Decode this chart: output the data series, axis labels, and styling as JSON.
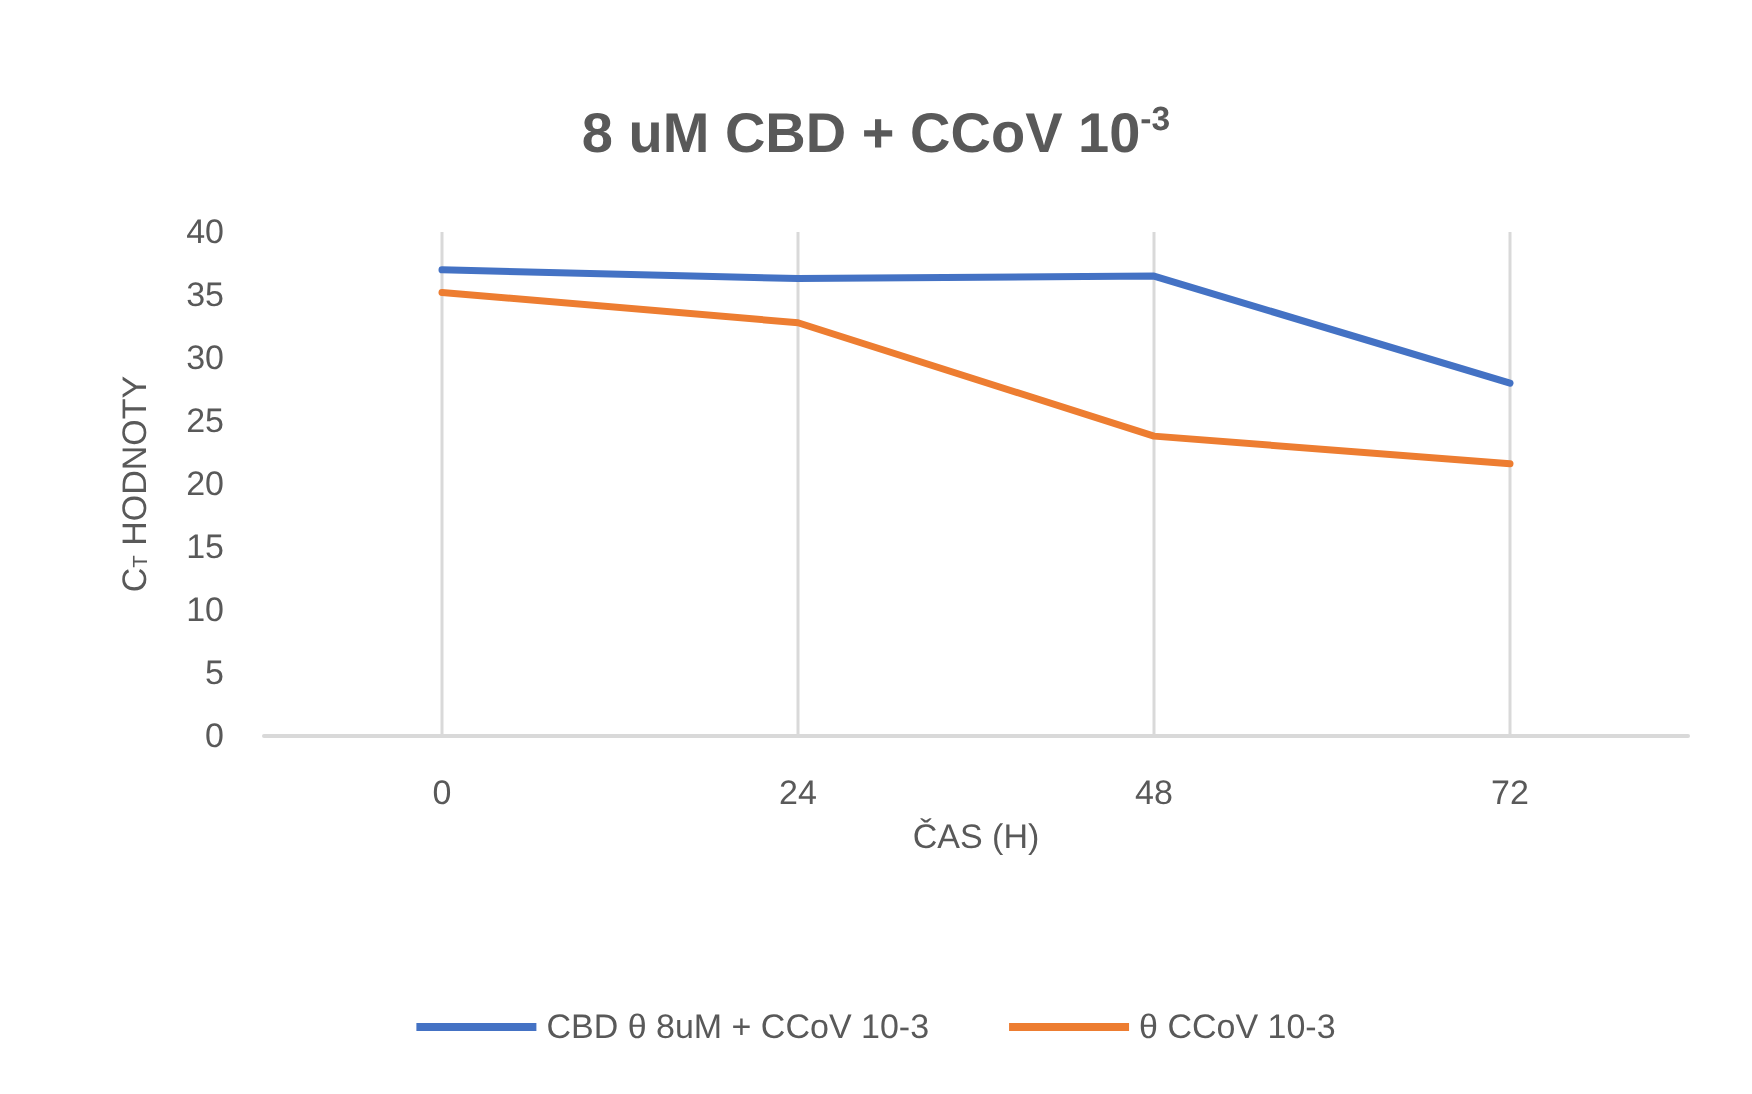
{
  "chart_data": {
    "type": "line",
    "title": "8 uM CBD + CCoV 10$^{-3}$",
    "xlabel": "ČAS (H)",
    "ylabel": "C$_{T}$ HODNOTY",
    "x": [
      0,
      24,
      48,
      72
    ],
    "xlim": [
      -12,
      84
    ],
    "xticks": [
      0,
      24,
      48,
      72
    ],
    "ylim": [
      0,
      40
    ],
    "yticks": [
      0,
      5,
      10,
      15,
      20,
      25,
      30,
      35,
      40
    ],
    "grid": "x",
    "legend": "bottom",
    "marker": "none",
    "line_style": "solid",
    "series": [
      {
        "name": "CBD θ 8uM + CCoV 10-3",
        "color": "#4472c4",
        "values": [
          37.0,
          36.3,
          36.5,
          28.0
        ]
      },
      {
        "name": "θ CCoV 10-3",
        "color": "#ed7d31",
        "values": [
          35.2,
          32.8,
          23.8,
          21.6
        ]
      }
    ]
  }
}
